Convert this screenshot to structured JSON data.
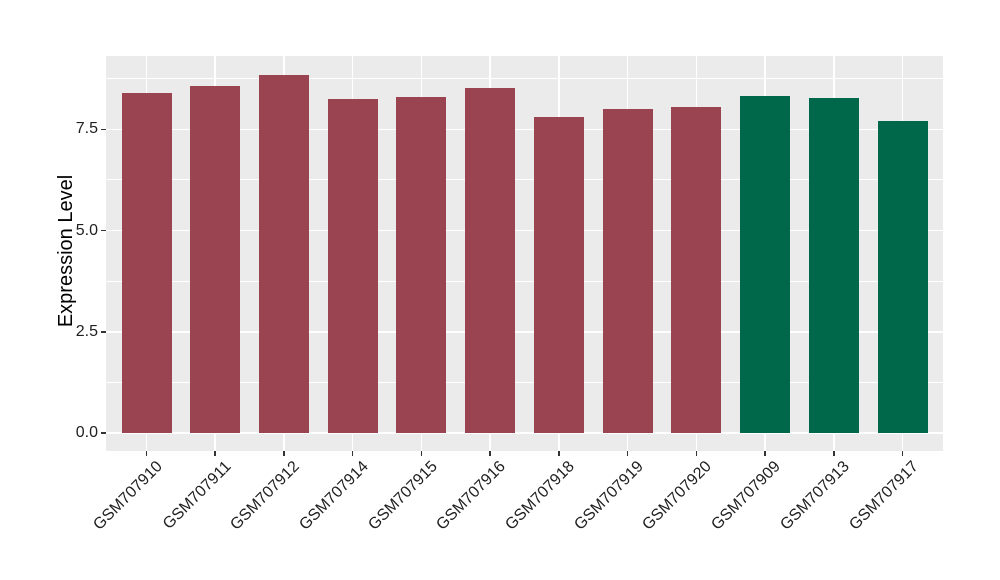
{
  "figure": {
    "background": "#FFFFFF"
  },
  "chart_data": {
    "type": "bar",
    "title": "",
    "xlabel": "",
    "ylabel": "Expression Level",
    "categories": [
      "GSM707910",
      "GSM707911",
      "GSM707912",
      "GSM707914",
      "GSM707915",
      "GSM707916",
      "GSM707918",
      "GSM707919",
      "GSM707920",
      "GSM707909",
      "GSM707913",
      "GSM707917"
    ],
    "series": [
      {
        "name": "expression",
        "values": [
          8.4,
          8.57,
          8.85,
          8.24,
          8.31,
          8.52,
          7.8,
          8.01,
          8.05,
          8.32,
          8.27,
          7.7
        ]
      }
    ],
    "bar_colors": [
      "#9B4451",
      "#9B4451",
      "#9B4451",
      "#9B4451",
      "#9B4451",
      "#9B4451",
      "#9B4451",
      "#9B4451",
      "#9B4451",
      "#00684A",
      "#00684A",
      "#00684A"
    ],
    "group_colors": {
      "maroon_group": "#9B4451",
      "green_group": "#00684A"
    },
    "ylim": [
      -0.44,
      9.31
    ],
    "y_major_ticks": [
      {
        "value": 0,
        "label": "0.0"
      },
      {
        "value": 2.5,
        "label": "2.5"
      },
      {
        "value": 5,
        "label": "5.0"
      },
      {
        "value": 7.5,
        "label": "7.5"
      }
    ],
    "y_minor_ticks": [
      1.25,
      3.75,
      6.25,
      8.75
    ],
    "grid": true,
    "legend": "none",
    "panel_bg": "#EBEBEB",
    "grid_color": "#FFFFFF",
    "tick_mark_color": "#333333",
    "axis_text_color": "#1F1F1F",
    "axis_title_color": "#000000"
  }
}
